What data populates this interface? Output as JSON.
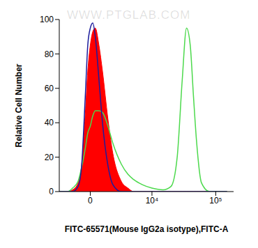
{
  "chart_data": {
    "type": "line",
    "watermark": "WWW.PTGLAB.COM",
    "x_label": "FITC-65571(Mouse IgG2a isotype),FITC-A",
    "y_label": "Relative Cell Number",
    "x": [
      -3000,
      -2000,
      -1500,
      -1000,
      -700,
      -400,
      -200,
      0,
      200,
      400,
      700,
      1000,
      1500,
      2000,
      3000,
      4000,
      5000,
      7000,
      10000,
      15000,
      20000,
      25000,
      30000,
      35000,
      40000,
      45000,
      50000,
      60000,
      80000,
      100000,
      150000
    ],
    "series": [
      {
        "type": "area",
        "color": "#ff0000",
        "values": [
          0,
          0,
          1,
          5,
          15,
          45,
          70,
          85,
          93,
          95,
          85,
          70,
          42,
          22,
          6,
          2,
          0,
          0,
          0,
          0,
          0,
          0,
          0,
          0,
          0,
          0,
          0,
          0,
          0,
          0,
          0
        ]
      },
      {
        "type": "line",
        "color": "#4cd94c",
        "values": [
          0,
          0,
          2,
          6,
          14,
          25,
          34,
          38,
          44,
          47,
          47,
          46,
          38,
          28,
          16,
          10,
          7,
          4,
          2,
          1,
          3,
          20,
          65,
          95,
          85,
          55,
          30,
          5,
          0,
          0,
          0
        ]
      },
      {
        "type": "line",
        "color": "#1c1c9c",
        "values": [
          0,
          0,
          0,
          3,
          15,
          55,
          85,
          95,
          98,
          90,
          65,
          40,
          15,
          4,
          0,
          0,
          0,
          0,
          0,
          0,
          0,
          0,
          0,
          0,
          0,
          0,
          0,
          0,
          0,
          0,
          0
        ]
      }
    ],
    "xlim": [
      -3000,
      190000
    ],
    "xticks": [
      0,
      {
        "value": 10000,
        "label": "10⁴"
      },
      {
        "value": 100000,
        "label": "10⁵"
      }
    ],
    "ylim": [
      0,
      100
    ],
    "yticks": [
      0,
      20,
      40,
      60,
      80,
      100
    ]
  }
}
